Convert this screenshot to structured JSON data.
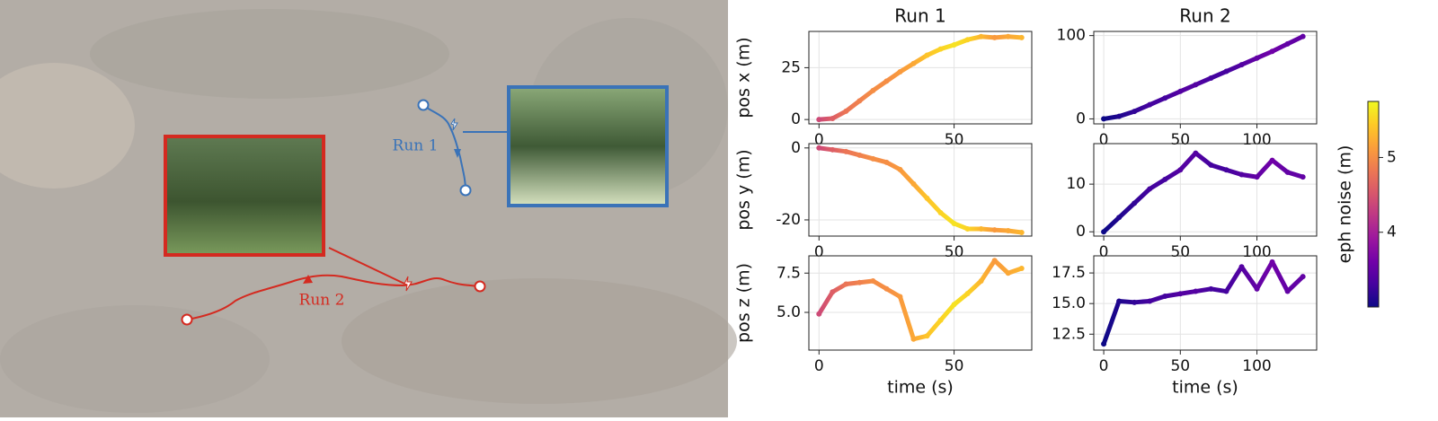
{
  "map": {
    "labels": [
      "Run 1",
      "Run 2"
    ]
  },
  "colorbar": {
    "label": "eph noise (m)",
    "lim": [
      3.0,
      5.75
    ],
    "ticks": [
      4,
      5
    ],
    "colormap": "plasma"
  },
  "chart_data": [
    {
      "type": "line",
      "title": "Run 1",
      "ylabel": "pos x (m)",
      "x": [
        0,
        5,
        10,
        15,
        20,
        25,
        30,
        35,
        40,
        45,
        50,
        55,
        60,
        65,
        70,
        75
      ],
      "values": [
        0,
        0.5,
        4,
        9,
        14,
        18.5,
        23,
        27,
        31,
        34,
        36,
        38.5,
        40,
        39.5,
        40,
        39.5
      ],
      "noise": [
        4.4,
        4.6,
        4.8,
        4.9,
        5.0,
        5.0,
        5.1,
        5.2,
        5.4,
        5.5,
        5.6,
        5.5,
        5.3,
        5.1,
        5.2,
        5.3
      ],
      "xlim": [
        -3.75,
        78.75
      ],
      "xticks": [
        0,
        50
      ],
      "ylim": [
        -2.1,
        42.5
      ],
      "yticks": [
        0,
        25
      ],
      "grid": true
    },
    {
      "type": "line",
      "title": "Run 2",
      "x": [
        0,
        10,
        20,
        30,
        40,
        50,
        60,
        70,
        80,
        90,
        100,
        110,
        120,
        130
      ],
      "values": [
        0,
        3,
        9,
        17,
        25,
        33,
        41,
        49,
        57,
        65,
        73,
        81,
        90,
        99
      ],
      "noise": [
        3.0,
        3.1,
        3.2,
        3.3,
        3.3,
        3.4,
        3.4,
        3.3,
        3.3,
        3.4,
        3.5,
        3.6,
        3.5,
        3.5
      ],
      "xlim": [
        -6.5,
        139
      ],
      "xticks": [
        0,
        50,
        100
      ],
      "ylim": [
        -6,
        105
      ],
      "yticks": [
        0,
        100
      ],
      "grid": true
    },
    {
      "type": "line",
      "ylabel": "pos y (m)",
      "x": [
        0,
        5,
        10,
        15,
        20,
        25,
        30,
        35,
        40,
        45,
        50,
        55,
        60,
        65,
        70,
        75
      ],
      "values": [
        0,
        -0.5,
        -1,
        -2,
        -3,
        -4,
        -6,
        -10,
        -14,
        -18,
        -21,
        -22.5,
        -22.5,
        -22.8,
        -23,
        -23.5
      ],
      "noise": [
        4.4,
        4.6,
        4.8,
        4.9,
        5.0,
        5.0,
        5.1,
        5.2,
        5.4,
        5.5,
        5.6,
        5.5,
        5.3,
        5.1,
        5.2,
        5.3
      ],
      "xlim": [
        -3.75,
        78.75
      ],
      "xticks": [
        0,
        50
      ],
      "ylim": [
        -24.5,
        1.2
      ],
      "yticks": [
        -20,
        0
      ],
      "grid": true
    },
    {
      "type": "line",
      "x": [
        0,
        10,
        20,
        30,
        40,
        50,
        60,
        70,
        80,
        90,
        100,
        110,
        120,
        130
      ],
      "values": [
        0,
        3,
        6,
        9,
        11,
        13,
        16.5,
        14,
        13,
        12,
        11.5,
        15,
        12.5,
        11.5
      ],
      "noise": [
        3.0,
        3.1,
        3.2,
        3.3,
        3.3,
        3.4,
        3.4,
        3.3,
        3.3,
        3.4,
        3.5,
        3.6,
        3.5,
        3.5
      ],
      "xlim": [
        -6.5,
        139
      ],
      "xticks": [
        0,
        50,
        100
      ],
      "ylim": [
        -0.9,
        18.5
      ],
      "yticks": [
        0,
        10
      ],
      "grid": true
    },
    {
      "type": "line",
      "ylabel": "pos z (m)",
      "xlabel": "time (s)",
      "x": [
        0,
        5,
        10,
        15,
        20,
        25,
        30,
        35,
        40,
        45,
        50,
        55,
        60,
        65,
        70,
        75
      ],
      "values": [
        4.9,
        6.3,
        6.8,
        6.9,
        7.0,
        6.5,
        6.0,
        3.3,
        3.5,
        4.5,
        5.5,
        6.2,
        7.0,
        8.3,
        7.5,
        7.8
      ],
      "noise": [
        4.4,
        4.6,
        4.8,
        4.9,
        5.0,
        5.0,
        5.1,
        5.2,
        5.4,
        5.5,
        5.6,
        5.5,
        5.3,
        5.1,
        5.2,
        5.3
      ],
      "xlim": [
        -3.75,
        78.75
      ],
      "xticks": [
        0,
        50
      ],
      "ylim": [
        2.6,
        8.6
      ],
      "yticks": [
        {
          "value": 5,
          "label": "5.0"
        },
        7.5
      ],
      "grid": true
    },
    {
      "type": "line",
      "xlabel": "time (s)",
      "x": [
        0,
        10,
        20,
        30,
        40,
        50,
        60,
        70,
        80,
        90,
        100,
        110,
        120,
        130
      ],
      "values": [
        11.7,
        15.2,
        15.1,
        15.2,
        15.6,
        15.8,
        16.0,
        16.2,
        16.0,
        18.0,
        16.2,
        18.4,
        16.0,
        17.2
      ],
      "noise": [
        3.0,
        3.1,
        3.2,
        3.3,
        3.3,
        3.4,
        3.4,
        3.3,
        3.3,
        3.4,
        3.5,
        3.6,
        3.5,
        3.5
      ],
      "xlim": [
        -6.5,
        139
      ],
      "xticks": [
        0,
        50,
        100
      ],
      "ylim": [
        11.2,
        18.9
      ],
      "yticks": [
        12.5,
        {
          "value": 15,
          "label": "15.0"
        },
        17.5
      ],
      "grid": true
    }
  ]
}
